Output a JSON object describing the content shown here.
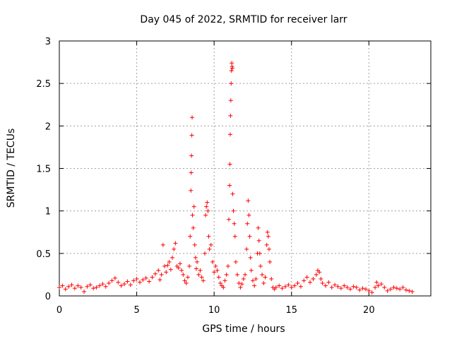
{
  "chart_data": {
    "type": "scatter",
    "title": "Day 045 of 2022, SRMTID for receiver larr",
    "xlabel": "GPS time / hours",
    "ylabel": "SRMTID / TECUs",
    "xlim": [
      0,
      24
    ],
    "ylim": [
      0,
      3
    ],
    "xticks": [
      0,
      5,
      10,
      15,
      20
    ],
    "yticks": [
      0,
      0.5,
      1,
      1.5,
      2,
      2.5,
      3
    ],
    "xtick_labels": [
      "0",
      "5",
      "10",
      "15",
      "20"
    ],
    "ytick_labels": [
      "0",
      "0.5",
      "1",
      "1.5",
      "2",
      "2.5",
      "3"
    ],
    "grid": true,
    "marker": "+",
    "color": "#ff0000",
    "series": [
      {
        "name": "SRMTID",
        "points": [
          [
            0.0,
            0.1
          ],
          [
            0.2,
            0.12
          ],
          [
            0.4,
            0.08
          ],
          [
            0.6,
            0.11
          ],
          [
            0.8,
            0.13
          ],
          [
            1.0,
            0.09
          ],
          [
            1.2,
            0.12
          ],
          [
            1.4,
            0.1
          ],
          [
            1.6,
            0.05
          ],
          [
            1.8,
            0.11
          ],
          [
            2.0,
            0.13
          ],
          [
            2.2,
            0.09
          ],
          [
            2.4,
            0.1
          ],
          [
            2.6,
            0.12
          ],
          [
            2.8,
            0.14
          ],
          [
            3.0,
            0.11
          ],
          [
            3.2,
            0.15
          ],
          [
            3.4,
            0.18
          ],
          [
            3.6,
            0.21
          ],
          [
            3.8,
            0.16
          ],
          [
            4.0,
            0.12
          ],
          [
            4.2,
            0.14
          ],
          [
            4.4,
            0.17
          ],
          [
            4.6,
            0.13
          ],
          [
            4.8,
            0.18
          ],
          [
            5.0,
            0.2
          ],
          [
            5.2,
            0.16
          ],
          [
            5.4,
            0.19
          ],
          [
            5.6,
            0.21
          ],
          [
            5.8,
            0.17
          ],
          [
            6.0,
            0.22
          ],
          [
            6.2,
            0.26
          ],
          [
            6.4,
            0.3
          ],
          [
            6.5,
            0.19
          ],
          [
            6.6,
            0.25
          ],
          [
            6.7,
            0.6
          ],
          [
            6.8,
            0.35
          ],
          [
            6.9,
            0.28
          ],
          [
            7.0,
            0.36
          ],
          [
            7.1,
            0.4
          ],
          [
            7.2,
            0.31
          ],
          [
            7.3,
            0.45
          ],
          [
            7.4,
            0.55
          ],
          [
            7.5,
            0.62
          ],
          [
            7.6,
            0.35
          ],
          [
            7.7,
            0.33
          ],
          [
            7.8,
            0.38
          ],
          [
            7.9,
            0.3
          ],
          [
            8.0,
            0.25
          ],
          [
            8.1,
            0.18
          ],
          [
            8.2,
            0.15
          ],
          [
            8.3,
            0.22
          ],
          [
            8.4,
            0.35
          ],
          [
            8.45,
            0.7
          ],
          [
            8.5,
            1.24
          ],
          [
            8.52,
            1.45
          ],
          [
            8.54,
            1.65
          ],
          [
            8.56,
            1.89
          ],
          [
            8.58,
            2.1
          ],
          [
            8.6,
            0.95
          ],
          [
            8.65,
            0.8
          ],
          [
            8.7,
            1.05
          ],
          [
            8.75,
            0.6
          ],
          [
            8.8,
            0.45
          ],
          [
            8.85,
            0.32
          ],
          [
            8.9,
            0.4
          ],
          [
            9.0,
            0.25
          ],
          [
            9.1,
            0.3
          ],
          [
            9.2,
            0.22
          ],
          [
            9.3,
            0.18
          ],
          [
            9.4,
            0.5
          ],
          [
            9.45,
            0.95
          ],
          [
            9.5,
            1.05
          ],
          [
            9.55,
            1.1
          ],
          [
            9.6,
            1.0
          ],
          [
            9.65,
            0.7
          ],
          [
            9.7,
            0.55
          ],
          [
            9.8,
            0.6
          ],
          [
            9.9,
            0.4
          ],
          [
            10.0,
            0.28
          ],
          [
            10.1,
            0.35
          ],
          [
            10.2,
            0.3
          ],
          [
            10.3,
            0.22
          ],
          [
            10.4,
            0.15
          ],
          [
            10.5,
            0.12
          ],
          [
            10.6,
            0.1
          ],
          [
            10.7,
            0.18
          ],
          [
            10.8,
            0.25
          ],
          [
            10.9,
            0.35
          ],
          [
            10.95,
            0.9
          ],
          [
            11.0,
            1.3
          ],
          [
            11.02,
            1.55
          ],
          [
            11.04,
            1.9
          ],
          [
            11.06,
            2.12
          ],
          [
            11.08,
            2.3
          ],
          [
            11.1,
            2.5
          ],
          [
            11.12,
            2.65
          ],
          [
            11.14,
            2.74
          ],
          [
            11.16,
            2.7
          ],
          [
            11.18,
            2.68
          ],
          [
            11.2,
            1.2
          ],
          [
            11.25,
            1.0
          ],
          [
            11.3,
            0.85
          ],
          [
            11.35,
            0.7
          ],
          [
            11.4,
            0.4
          ],
          [
            11.5,
            0.25
          ],
          [
            11.6,
            0.15
          ],
          [
            11.7,
            0.1
          ],
          [
            11.8,
            0.14
          ],
          [
            11.9,
            0.2
          ],
          [
            12.0,
            0.25
          ],
          [
            12.1,
            0.55
          ],
          [
            12.15,
            0.85
          ],
          [
            12.2,
            1.12
          ],
          [
            12.25,
            0.95
          ],
          [
            12.3,
            0.7
          ],
          [
            12.35,
            0.45
          ],
          [
            12.4,
            0.3
          ],
          [
            12.5,
            0.18
          ],
          [
            12.6,
            0.12
          ],
          [
            12.7,
            0.2
          ],
          [
            12.8,
            0.5
          ],
          [
            12.85,
            0.8
          ],
          [
            12.9,
            0.65
          ],
          [
            12.95,
            0.5
          ],
          [
            13.0,
            0.35
          ],
          [
            13.1,
            0.25
          ],
          [
            13.2,
            0.15
          ],
          [
            13.3,
            0.22
          ],
          [
            13.4,
            0.6
          ],
          [
            13.45,
            0.75
          ],
          [
            13.5,
            0.7
          ],
          [
            13.55,
            0.55
          ],
          [
            13.6,
            0.4
          ],
          [
            13.7,
            0.2
          ],
          [
            13.8,
            0.1
          ],
          [
            13.9,
            0.08
          ],
          [
            14.0,
            0.1
          ],
          [
            14.2,
            0.12
          ],
          [
            14.4,
            0.09
          ],
          [
            14.6,
            0.11
          ],
          [
            14.8,
            0.13
          ],
          [
            15.0,
            0.1
          ],
          [
            15.2,
            0.12
          ],
          [
            15.4,
            0.15
          ],
          [
            15.6,
            0.11
          ],
          [
            15.8,
            0.18
          ],
          [
            16.0,
            0.22
          ],
          [
            16.2,
            0.16
          ],
          [
            16.4,
            0.2
          ],
          [
            16.6,
            0.25
          ],
          [
            16.7,
            0.3
          ],
          [
            16.8,
            0.28
          ],
          [
            16.9,
            0.2
          ],
          [
            17.0,
            0.15
          ],
          [
            17.2,
            0.12
          ],
          [
            17.4,
            0.16
          ],
          [
            17.6,
            0.1
          ],
          [
            17.8,
            0.13
          ],
          [
            18.0,
            0.11
          ],
          [
            18.2,
            0.09
          ],
          [
            18.4,
            0.12
          ],
          [
            18.6,
            0.1
          ],
          [
            18.8,
            0.08
          ],
          [
            19.0,
            0.11
          ],
          [
            19.2,
            0.1
          ],
          [
            19.4,
            0.07
          ],
          [
            19.6,
            0.09
          ],
          [
            19.8,
            0.08
          ],
          [
            20.0,
            0.06
          ],
          [
            20.2,
            0.04
          ],
          [
            20.4,
            0.1
          ],
          [
            20.5,
            0.16
          ],
          [
            20.6,
            0.12
          ],
          [
            20.8,
            0.14
          ],
          [
            21.0,
            0.1
          ],
          [
            21.2,
            0.06
          ],
          [
            21.4,
            0.08
          ],
          [
            21.6,
            0.1
          ],
          [
            21.8,
            0.09
          ],
          [
            22.0,
            0.08
          ],
          [
            22.2,
            0.1
          ],
          [
            22.4,
            0.07
          ],
          [
            22.6,
            0.06
          ],
          [
            22.8,
            0.05
          ]
        ]
      }
    ]
  }
}
